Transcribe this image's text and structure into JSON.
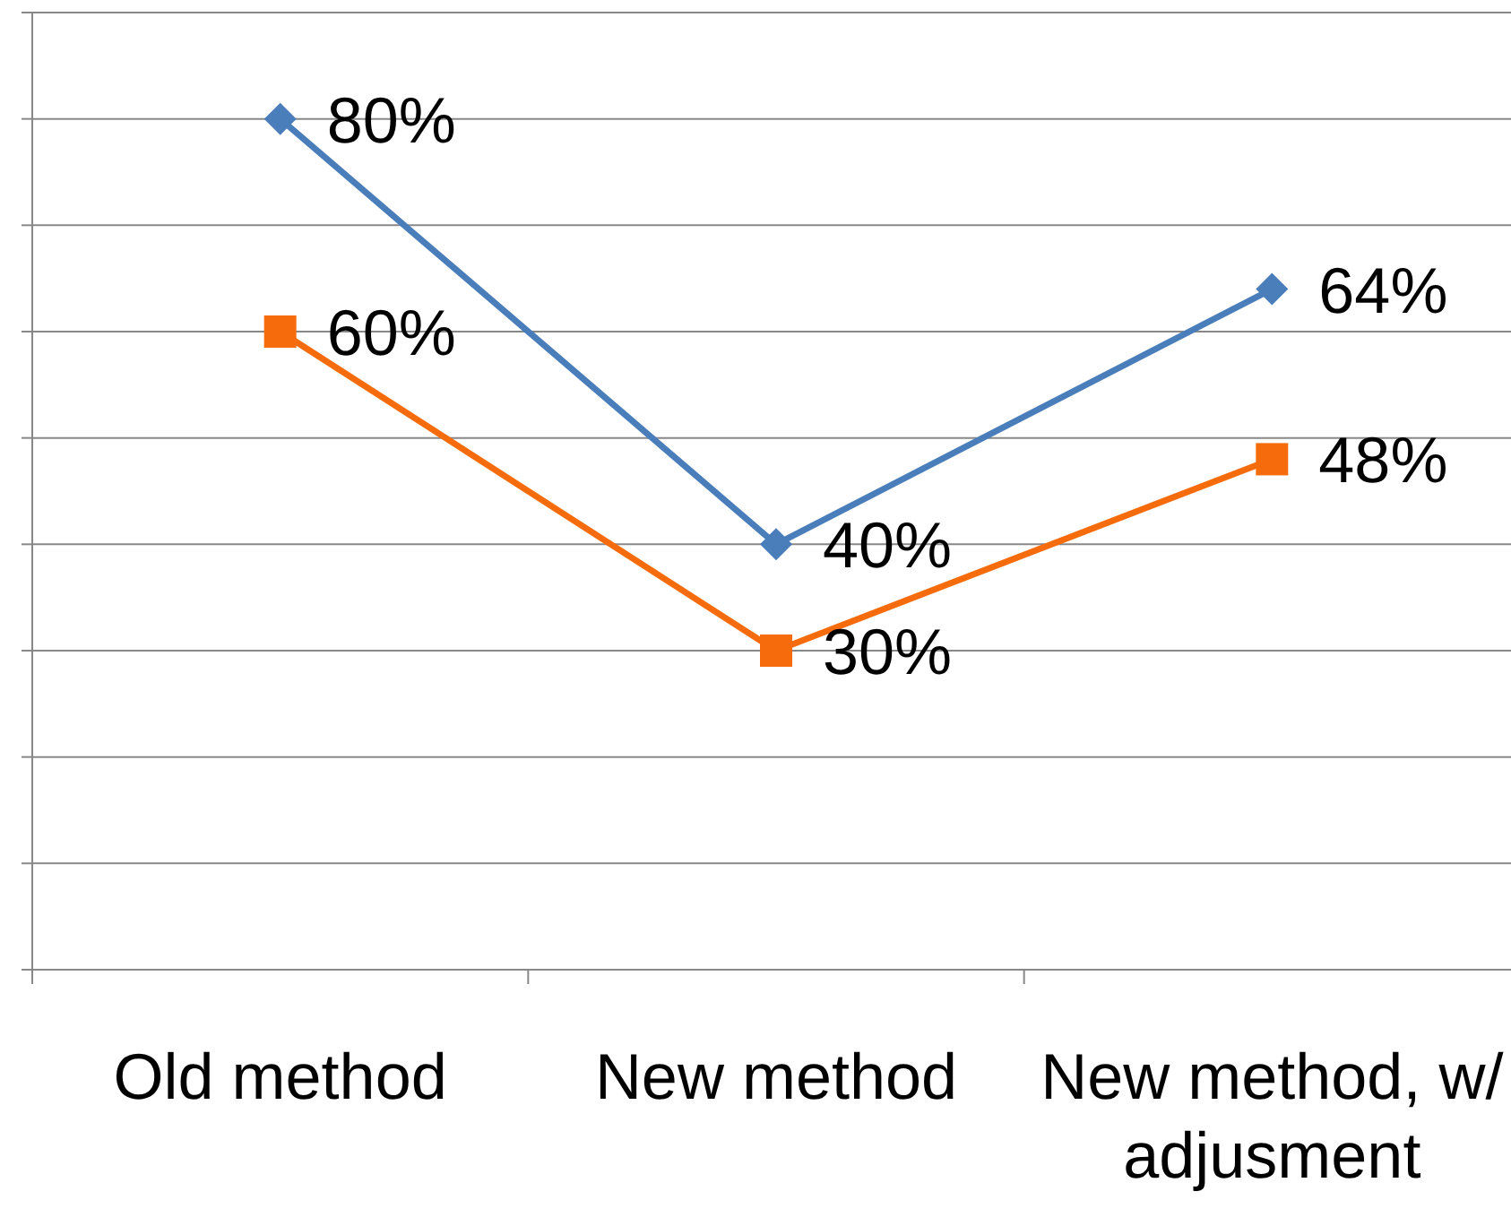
{
  "chart_data": {
    "type": "line",
    "categories": [
      "Old method",
      "New method",
      "New method, w/ adjusment"
    ],
    "series": [
      {
        "color": "#4a7ebb",
        "marker": "diamond",
        "values": [
          80,
          40,
          64
        ],
        "value_labels": [
          "80%",
          "40%",
          "64%"
        ]
      },
      {
        "color": "#f66c0c",
        "marker": "square",
        "values": [
          60,
          30,
          48
        ],
        "value_labels": [
          "60%",
          "30%",
          "48%"
        ]
      }
    ],
    "ylim": [
      0,
      90
    ],
    "yticks": [
      {
        "value": 0,
        "label": null
      },
      {
        "value": 10,
        "label": null
      },
      {
        "value": 20,
        "label": null
      },
      {
        "value": 30,
        "label": null
      },
      {
        "value": 40,
        "label": null
      },
      {
        "value": 50,
        "label": null
      },
      {
        "value": 60,
        "label": null
      },
      {
        "value": 70,
        "label": null
      },
      {
        "value": 80,
        "label": null
      },
      {
        "value": 90,
        "label": null
      }
    ],
    "grid": "y",
    "tick_labels": "x"
  }
}
